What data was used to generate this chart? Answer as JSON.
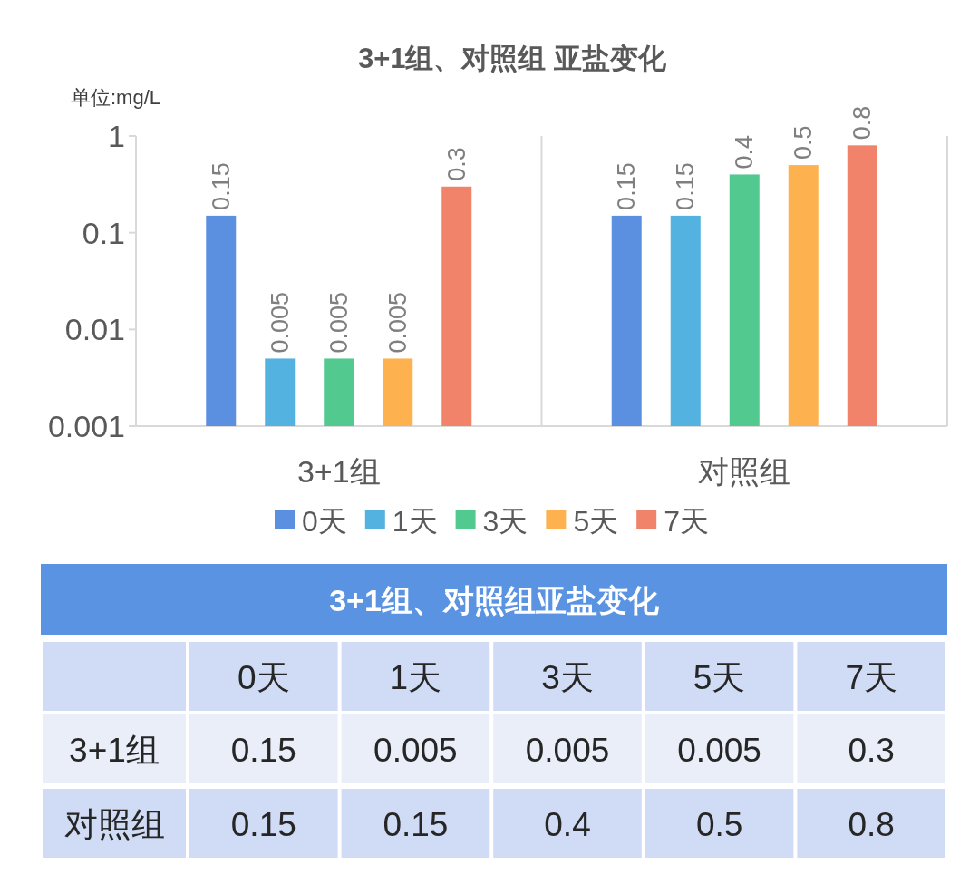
{
  "chart_data": {
    "type": "bar",
    "title": "3+1组、对照组 亚盐变化",
    "ylabel": "单位:mg/L",
    "categories": [
      "3+1组",
      "对照组"
    ],
    "series": [
      {
        "name": "0天",
        "color": "#5b8fe0",
        "values": [
          0.15,
          0.15
        ],
        "value_labels": [
          "0.15",
          "0.15"
        ]
      },
      {
        "name": "1天",
        "color": "#53b2e0",
        "values": [
          0.005,
          0.15
        ],
        "value_labels": [
          "0.005",
          "0.15"
        ]
      },
      {
        "name": "3天",
        "color": "#52c98f",
        "values": [
          0.005,
          0.4
        ],
        "value_labels": [
          "0.005",
          "0.4"
        ]
      },
      {
        "name": "5天",
        "color": "#fdb24f",
        "values": [
          0.005,
          0.5
        ],
        "value_labels": [
          "0.005",
          "0.5"
        ]
      },
      {
        "name": "7天",
        "color": "#f0836a",
        "values": [
          0.3,
          0.8
        ],
        "value_labels": [
          "0.3",
          "0.8"
        ]
      }
    ],
    "log": true,
    "ylim": [
      0.001,
      1
    ],
    "yticks": [
      0.001,
      0.01,
      0.1,
      1
    ],
    "grid": false,
    "legend": "bottom",
    "data_labels": true,
    "annotations": [
      "3+1组、对照组亚盐变化"
    ]
  }
}
